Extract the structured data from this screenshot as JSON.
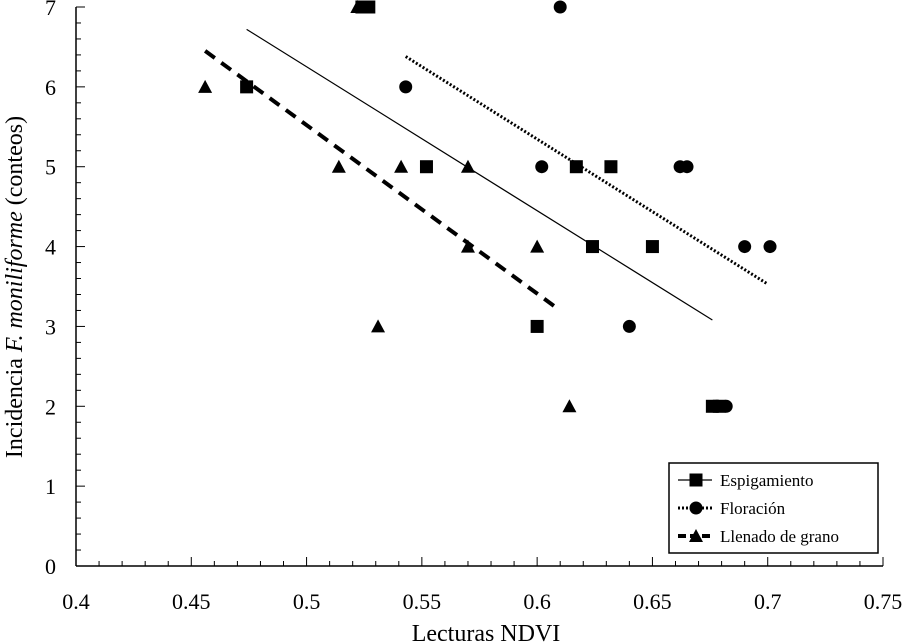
{
  "chart_data": {
    "type": "scatter",
    "xlabel": "Lecturas NDVI",
    "ylabel_prefix": "Incidencia ",
    "ylabel_italic": "F. moniliforme",
    "ylabel_suffix": " (conteos)",
    "xlim": [
      0.4,
      0.75
    ],
    "ylim": [
      0,
      7
    ],
    "xticks": [
      "0.4",
      "0.45",
      "0.5",
      "0.55",
      "0.6",
      "0.65",
      "0.7",
      "0.75"
    ],
    "yticks": [
      "0",
      "1",
      "2",
      "3",
      "4",
      "5",
      "6",
      "7"
    ],
    "legend_position": "bottom-right",
    "series": [
      {
        "name": "Espigamiento",
        "marker": "square",
        "line": "solid",
        "points": [
          [
            0.474,
            6
          ],
          [
            0.524,
            7
          ],
          [
            0.527,
            7
          ],
          [
            0.552,
            5
          ],
          [
            0.6,
            3
          ],
          [
            0.617,
            5
          ],
          [
            0.624,
            4
          ],
          [
            0.632,
            5
          ],
          [
            0.65,
            4
          ],
          [
            0.676,
            2
          ],
          [
            0.679,
            2
          ]
        ],
        "fit": [
          [
            0.474,
            6.72
          ],
          [
            0.676,
            3.08
          ]
        ]
      },
      {
        "name": "Floración",
        "marker": "circle",
        "line": "dotted",
        "points": [
          [
            0.543,
            6
          ],
          [
            0.602,
            5
          ],
          [
            0.61,
            7
          ],
          [
            0.64,
            3
          ],
          [
            0.662,
            5
          ],
          [
            0.665,
            5
          ],
          [
            0.678,
            2
          ],
          [
            0.682,
            2
          ],
          [
            0.69,
            4
          ],
          [
            0.701,
            4
          ]
        ],
        "fit": [
          [
            0.543,
            6.38
          ],
          [
            0.7,
            3.53
          ]
        ]
      },
      {
        "name": "Llenado de grano",
        "marker": "triangle",
        "line": "dashed",
        "points": [
          [
            0.456,
            6
          ],
          [
            0.514,
            5
          ],
          [
            0.522,
            7
          ],
          [
            0.531,
            3
          ],
          [
            0.541,
            5
          ],
          [
            0.57,
            5
          ],
          [
            0.57,
            4
          ],
          [
            0.6,
            4
          ],
          [
            0.614,
            2
          ]
        ],
        "fit": [
          [
            0.456,
            6.45
          ],
          [
            0.61,
            3.2
          ]
        ]
      }
    ]
  }
}
